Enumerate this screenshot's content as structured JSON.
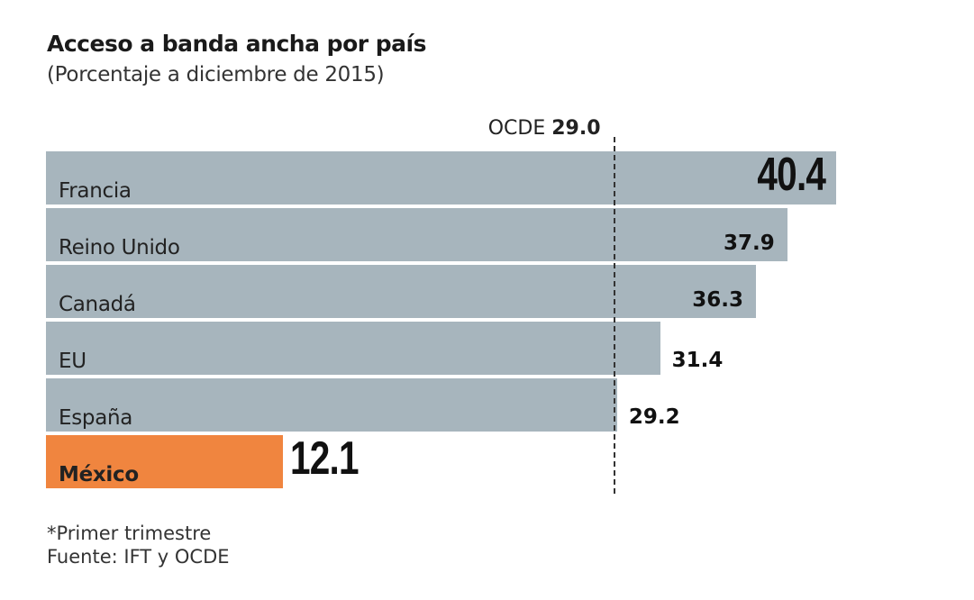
{
  "chart_data": {
    "type": "bar",
    "orientation": "horizontal",
    "title": "Acceso a banda ancha por país",
    "subtitle": "(Porcentaje a diciembre de 2015)",
    "categories": [
      "Francia",
      "Reino Unido",
      "Canadá",
      "EU",
      "España",
      "México"
    ],
    "values": [
      40.4,
      37.9,
      36.3,
      31.4,
      29.2,
      12.1
    ],
    "value_labels": [
      "40.4",
      "37.9",
      "36.3",
      "31.4",
      "29.2",
      "12.1"
    ],
    "reference_line": {
      "label": "OCDE",
      "value": 29.0,
      "value_label": "29.0"
    },
    "xlim": [
      0,
      40.4
    ],
    "grid": false,
    "colors": {
      "default": "#a7b5bd",
      "highlight": "#f0853f",
      "highlight_category": "México"
    }
  },
  "footnotes": [
    "*Primer trimestre",
    "Fuente: IFT y OCDE"
  ]
}
